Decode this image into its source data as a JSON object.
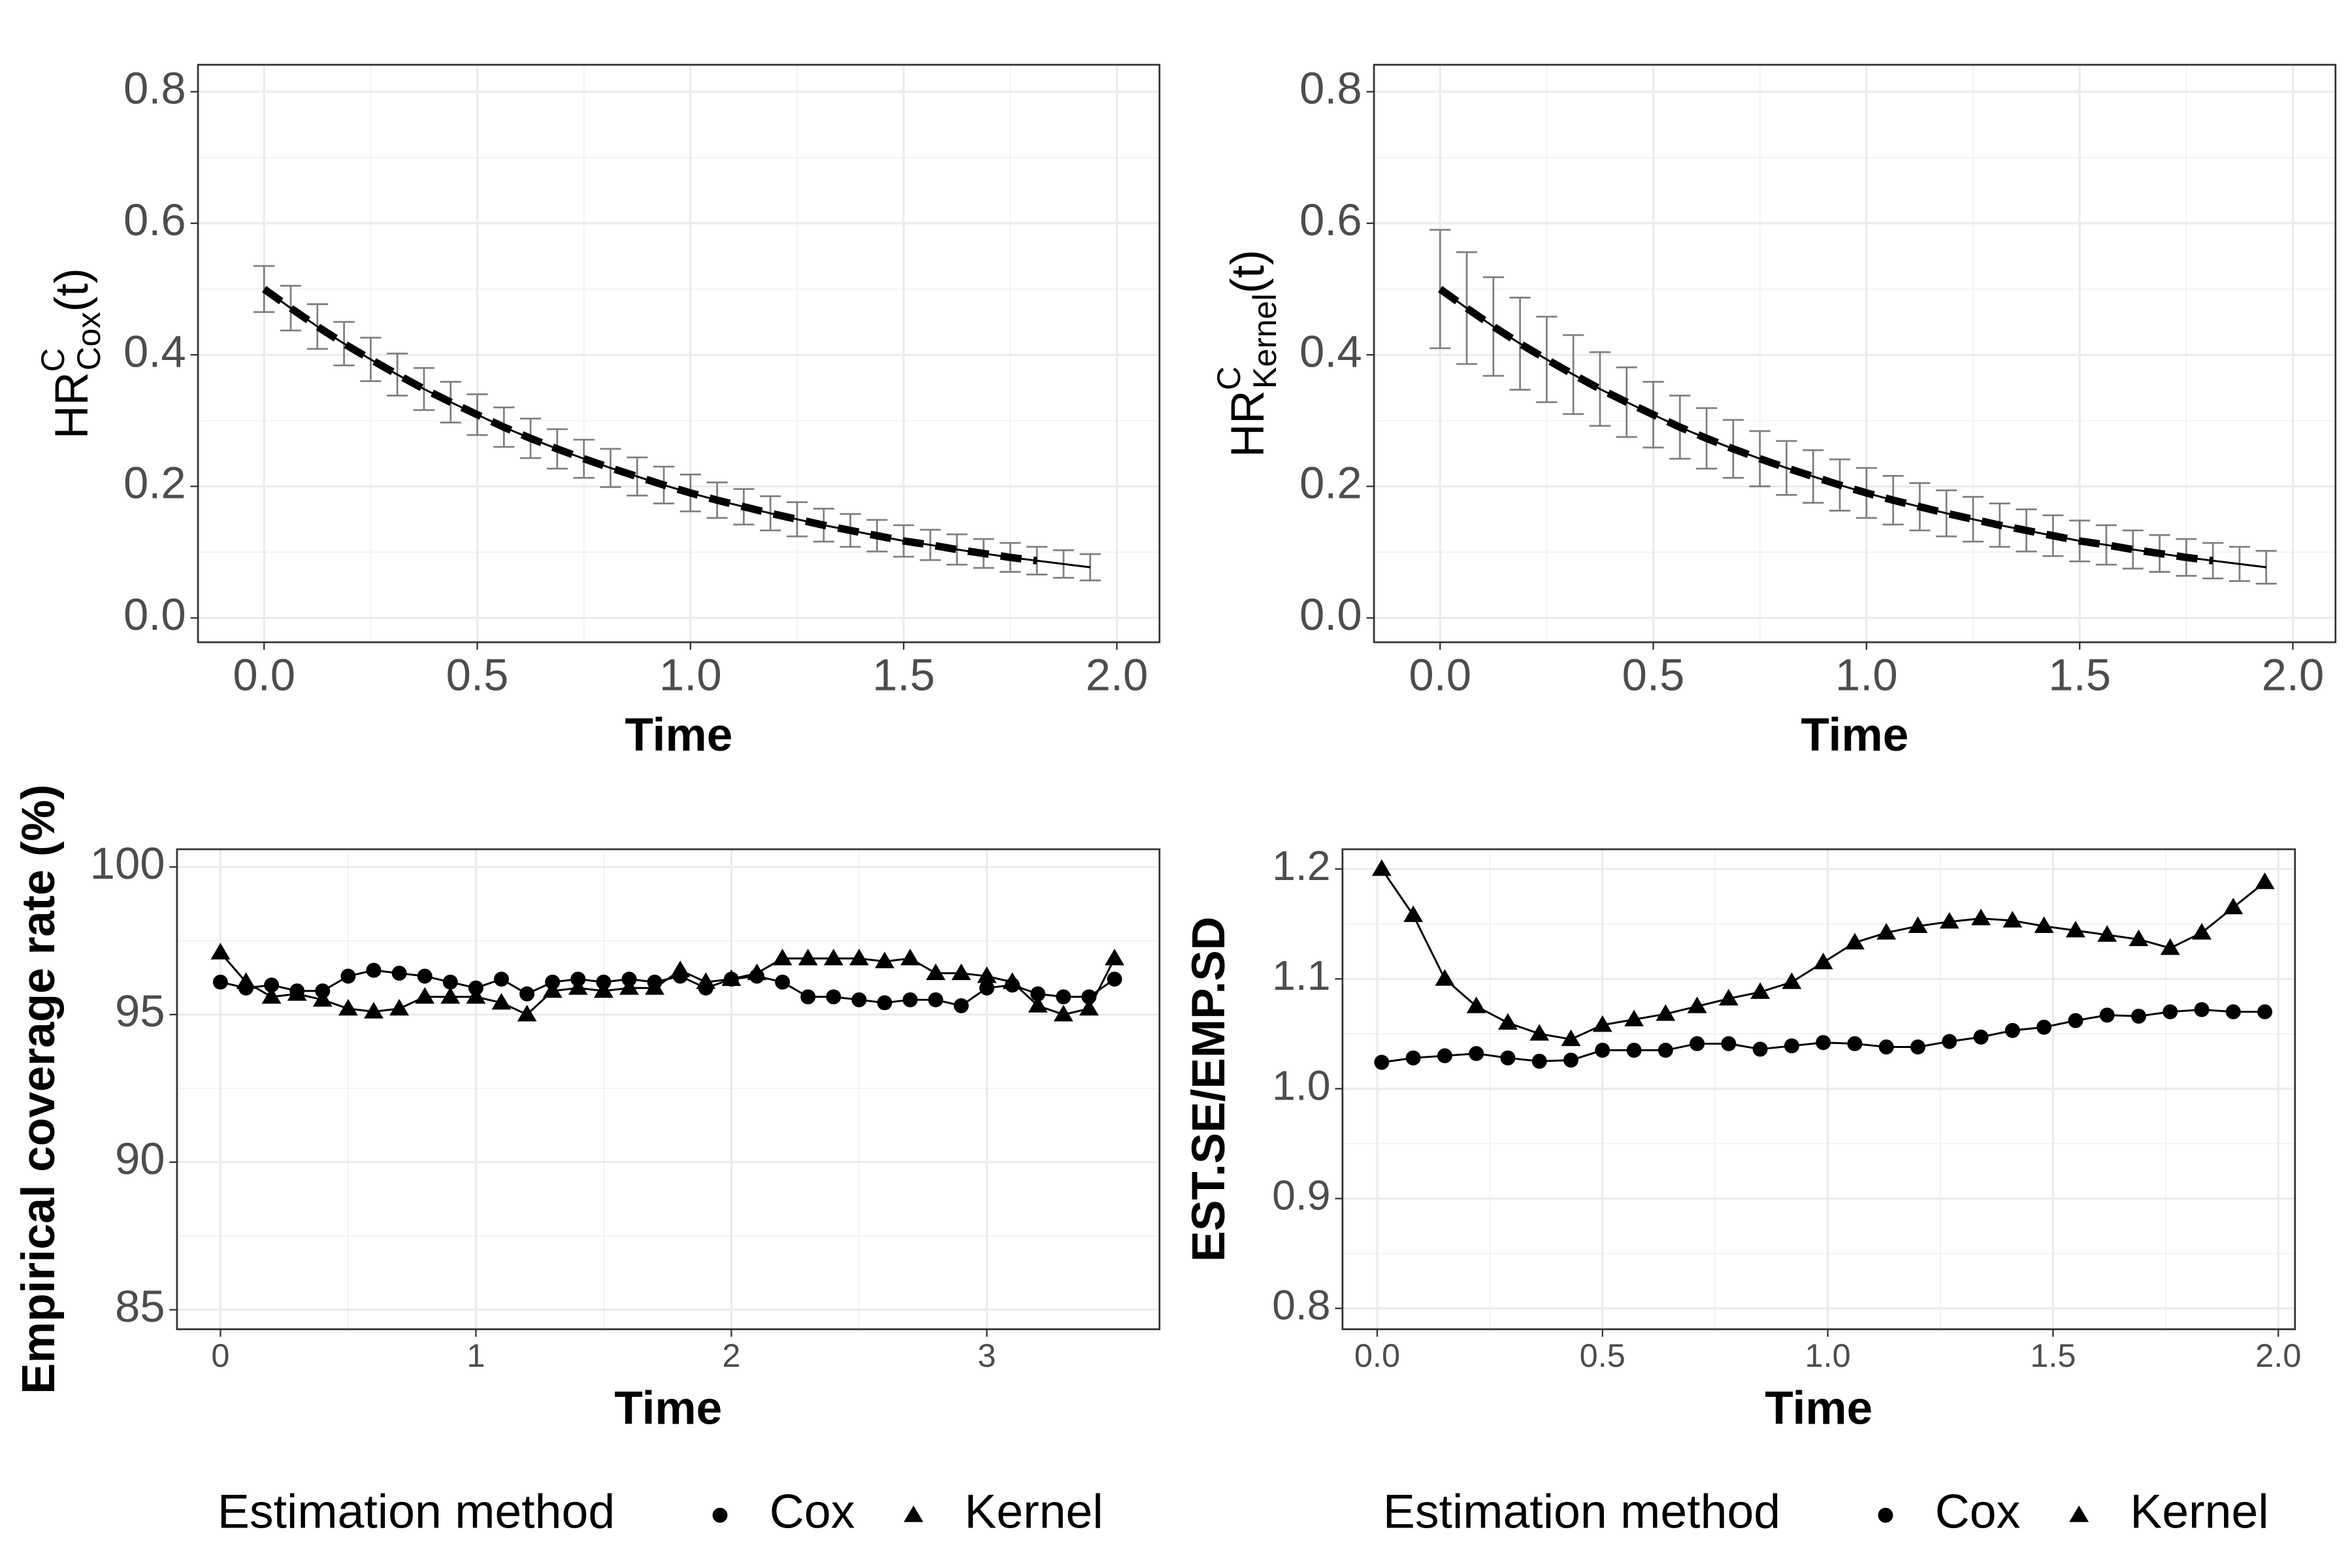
{
  "chart_data": [
    {
      "type": "line",
      "ylabel": {
        "base": "HR",
        "sup": "C",
        "sub": "Cox",
        "suffix": "(t)"
      },
      "xlabel": "Time",
      "x": [
        0,
        0.0625,
        0.125,
        0.1875,
        0.25,
        0.3125,
        0.375,
        0.4375,
        0.5,
        0.5625,
        0.625,
        0.6875,
        0.75,
        0.8125,
        0.875,
        0.9375,
        1,
        1.0625,
        1.125,
        1.1875,
        1.25,
        1.3125,
        1.375,
        1.4375,
        1.5,
        1.5625,
        1.625,
        1.6875,
        1.75,
        1.8125,
        1.875,
        1.9375
      ],
      "series": [
        {
          "color": "#000000",
          "style": "solid",
          "values": [
            0.5,
            0.471,
            0.443,
            0.417,
            0.393,
            0.37,
            0.348,
            0.328,
            0.309,
            0.29,
            0.273,
            0.257,
            0.242,
            0.228,
            0.215,
            0.202,
            0.19,
            0.179,
            0.169,
            0.159,
            0.15,
            0.141,
            0.133,
            0.125,
            0.117,
            0.111,
            0.104,
            0.098,
            0.092,
            0.087,
            0.082,
            0.077
          ]
        },
        {
          "color": "#000000",
          "style": "dashed",
          "values": [
            0.5,
            0.471,
            0.443,
            0.417,
            0.393,
            0.37,
            0.348,
            0.328,
            0.309,
            0.29,
            0.273,
            0.257,
            0.242,
            0.228,
            0.215,
            0.202,
            0.19,
            0.179,
            0.169,
            0.159,
            0.15,
            0.141,
            0.133,
            0.125,
            0.117,
            0.111,
            0.104,
            0.098,
            0.092,
            0.087,
            null,
            null
          ]
        }
      ],
      "errors": [
        0.035,
        0.034,
        0.034,
        0.033,
        0.033,
        0.032,
        0.032,
        0.031,
        0.031,
        0.03,
        0.03,
        0.03,
        0.029,
        0.029,
        0.029,
        0.028,
        0.028,
        0.027,
        0.027,
        0.026,
        0.026,
        0.025,
        0.025,
        0.024,
        0.024,
        0.023,
        0.023,
        0.022,
        0.022,
        0.021,
        0.021,
        0.02
      ],
      "error_color": "#808080",
      "xlim": [
        -0.155,
        2.1
      ],
      "xticks": [
        {
          "value": 0,
          "label": "0.0"
        },
        0.5,
        {
          "value": 1,
          "label": "1.0"
        },
        1.5,
        {
          "value": 2,
          "label": "2.0"
        }
      ],
      "ylim": [
        -0.037,
        0.841
      ],
      "yticks": [
        {
          "value": 0,
          "label": "0.0"
        },
        0.2,
        0.4,
        0.6,
        0.8
      ],
      "grid": true
    },
    {
      "type": "line",
      "ylabel": {
        "base": "HR",
        "sup": "C",
        "sub": "Kernel",
        "suffix": "(t)"
      },
      "xlabel": "Time",
      "x": [
        0,
        0.0625,
        0.125,
        0.1875,
        0.25,
        0.3125,
        0.375,
        0.4375,
        0.5,
        0.5625,
        0.625,
        0.6875,
        0.75,
        0.8125,
        0.875,
        0.9375,
        1,
        1.0625,
        1.125,
        1.1875,
        1.25,
        1.3125,
        1.375,
        1.4375,
        1.5,
        1.5625,
        1.625,
        1.6875,
        1.75,
        1.8125,
        1.875,
        1.9375
      ],
      "series": [
        {
          "color": "#000000",
          "style": "solid",
          "values": [
            0.5,
            0.471,
            0.443,
            0.417,
            0.393,
            0.37,
            0.348,
            0.328,
            0.309,
            0.29,
            0.273,
            0.257,
            0.242,
            0.228,
            0.215,
            0.202,
            0.19,
            0.179,
            0.169,
            0.159,
            0.15,
            0.141,
            0.133,
            0.125,
            0.117,
            0.111,
            0.104,
            0.098,
            0.092,
            0.087,
            0.082,
            0.077
          ]
        },
        {
          "color": "#000000",
          "style": "dashed",
          "values": [
            0.5,
            0.471,
            0.443,
            0.417,
            0.393,
            0.37,
            0.348,
            0.328,
            0.309,
            0.29,
            0.273,
            0.257,
            0.242,
            0.228,
            0.215,
            0.202,
            0.19,
            0.179,
            0.169,
            0.159,
            0.15,
            0.141,
            0.133,
            0.125,
            0.117,
            0.111,
            0.104,
            0.098,
            0.092,
            0.087,
            null,
            null
          ]
        }
      ],
      "errors": [
        0.09,
        0.085,
        0.075,
        0.07,
        0.065,
        0.06,
        0.056,
        0.053,
        0.05,
        0.048,
        0.046,
        0.044,
        0.042,
        0.041,
        0.04,
        0.039,
        0.038,
        0.037,
        0.036,
        0.035,
        0.034,
        0.033,
        0.032,
        0.031,
        0.031,
        0.03,
        0.029,
        0.028,
        0.028,
        0.027,
        0.026,
        0.025
      ],
      "error_color": "#808080",
      "xlim": [
        -0.155,
        2.1
      ],
      "xticks": [
        {
          "value": 0,
          "label": "0.0"
        },
        0.5,
        {
          "value": 1,
          "label": "1.0"
        },
        1.5,
        {
          "value": 2,
          "label": "2.0"
        }
      ],
      "ylim": [
        -0.037,
        0.841
      ],
      "yticks": [
        {
          "value": 0,
          "label": "0.0"
        },
        0.2,
        0.4,
        0.6,
        0.8
      ],
      "grid": true
    },
    {
      "type": "line",
      "ylabel": "Empirical coverage rate (%)",
      "xlabel": "Time",
      "x": [
        0,
        0.1,
        0.2,
        0.3,
        0.4,
        0.5,
        0.6,
        0.7,
        0.8,
        0.9,
        1,
        1.1,
        1.2,
        1.3,
        1.4,
        1.5,
        1.6,
        1.7,
        1.8,
        1.9,
        2,
        2.1,
        2.2,
        2.3,
        2.4,
        2.5,
        2.6,
        2.7,
        2.8,
        2.9,
        3,
        3.1,
        3.2,
        3.3,
        3.4,
        3.5
      ],
      "series": [
        {
          "name": "Cox",
          "marker": "circle",
          "color": "#000000",
          "values": [
            96.1,
            95.9,
            96.0,
            95.8,
            95.8,
            96.3,
            96.5,
            96.4,
            96.3,
            96.1,
            95.9,
            96.2,
            95.7,
            96.1,
            96.2,
            96.1,
            96.2,
            96.1,
            96.3,
            95.9,
            96.2,
            96.3,
            96.1,
            95.6,
            95.6,
            95.5,
            95.4,
            95.5,
            95.5,
            95.3,
            95.9,
            96.0,
            95.7,
            95.6,
            95.6,
            96.2
          ]
        },
        {
          "name": "Kernel",
          "marker": "triangle",
          "color": "#000000",
          "values": [
            97.1,
            96.1,
            95.6,
            95.7,
            95.5,
            95.2,
            95.1,
            95.2,
            95.6,
            95.6,
            95.6,
            95.4,
            95.0,
            95.8,
            95.9,
            95.8,
            95.9,
            95.9,
            96.5,
            96.1,
            96.2,
            96.4,
            96.9,
            96.9,
            96.9,
            96.9,
            96.8,
            96.9,
            96.4,
            96.4,
            96.3,
            96.1,
            95.3,
            95.0,
            95.2,
            96.9
          ]
        }
      ],
      "legend_title": "Estimation method",
      "legend": "bottom",
      "xlim": [
        -0.17,
        3.676
      ],
      "xticks": [
        0,
        1,
        2,
        3
      ],
      "ylim": [
        84.34,
        100.6
      ],
      "yticks": [
        85,
        90,
        95,
        100
      ],
      "grid": true
    },
    {
      "type": "line",
      "ylabel": "EST.SE/EMP.SD",
      "xlabel": "Time",
      "x": [
        0.01,
        0.08,
        0.15,
        0.22,
        0.29,
        0.36,
        0.43,
        0.5,
        0.57,
        0.64,
        0.71,
        0.78,
        0.85,
        0.92,
        0.99,
        1.06,
        1.13,
        1.2,
        1.27,
        1.34,
        1.41,
        1.48,
        1.55,
        1.62,
        1.69,
        1.76,
        1.83,
        1.9,
        1.97
      ],
      "series": [
        {
          "name": "Cox",
          "marker": "circle",
          "color": "#000000",
          "values": [
            1.024,
            1.028,
            1.03,
            1.032,
            1.028,
            1.025,
            1.026,
            1.035,
            1.035,
            1.035,
            1.041,
            1.041,
            1.036,
            1.039,
            1.042,
            1.041,
            1.038,
            1.038,
            1.043,
            1.047,
            1.053,
            1.056,
            1.062,
            1.067,
            1.066,
            1.07,
            1.072,
            1.07,
            1.07
          ]
        },
        {
          "name": "Kernel",
          "marker": "triangle",
          "color": "#000000",
          "values": [
            1.2,
            1.158,
            1.1,
            1.075,
            1.06,
            1.05,
            1.045,
            1.058,
            1.063,
            1.068,
            1.075,
            1.082,
            1.088,
            1.097,
            1.115,
            1.133,
            1.142,
            1.148,
            1.152,
            1.155,
            1.153,
            1.148,
            1.144,
            1.14,
            1.136,
            1.128,
            1.142,
            1.165,
            1.188
          ]
        }
      ],
      "legend_title": "Estimation method",
      "legend": "bottom",
      "xlim": [
        -0.077,
        2.037
      ],
      "xticks": [
        {
          "value": 0,
          "label": "0.0"
        },
        0.5,
        {
          "value": 1,
          "label": "1.0"
        },
        1.5,
        {
          "value": 2,
          "label": "2.0"
        }
      ],
      "ylim": [
        0.781,
        1.218
      ],
      "yticks": [
        0.8,
        0.9,
        {
          "value": 1,
          "label": "1.0"
        },
        1.1,
        1.2
      ],
      "grid": true
    }
  ]
}
